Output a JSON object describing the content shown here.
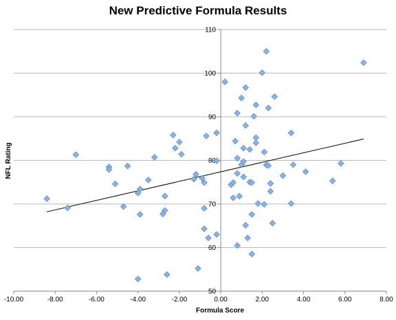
{
  "chart_data": {
    "type": "scatter",
    "title": "New Predictive Formula Results",
    "xlabel": "Formula Score",
    "ylabel": "NFL Rating",
    "xlim": [
      -10,
      8
    ],
    "ylim": [
      50,
      110
    ],
    "x_ticks": [
      "-10.00",
      "-8.00",
      "-6.00",
      "-4.00",
      "-2.00",
      "0.00",
      "2.00",
      "4.00",
      "6.00",
      "8.00"
    ],
    "y_ticks": [
      "50",
      "60",
      "70",
      "80",
      "90",
      "100",
      "110"
    ],
    "grid": "horizontal",
    "legend": "none",
    "marker_color": "#8db3e2",
    "marker_stroke": "#5b8cc7",
    "trendline": {
      "x": [
        -8.4,
        6.9
      ],
      "y": [
        68.2,
        84.9
      ]
    },
    "points": [
      {
        "x": -8.4,
        "y": 71.2
      },
      {
        "x": -7.4,
        "y": 69.1
      },
      {
        "x": -7.0,
        "y": 81.3
      },
      {
        "x": -5.4,
        "y": 78.5
      },
      {
        "x": -5.4,
        "y": 77.9
      },
      {
        "x": -5.1,
        "y": 74.6
      },
      {
        "x": -4.5,
        "y": 78.7
      },
      {
        "x": -4.7,
        "y": 69.4
      },
      {
        "x": -4.0,
        "y": 72.5
      },
      {
        "x": -3.9,
        "y": 73.4
      },
      {
        "x": -3.9,
        "y": 67.6
      },
      {
        "x": -3.5,
        "y": 75.5
      },
      {
        "x": -3.2,
        "y": 80.7
      },
      {
        "x": -4.0,
        "y": 52.8
      },
      {
        "x": -2.7,
        "y": 71.8
      },
      {
        "x": -2.7,
        "y": 68.5
      },
      {
        "x": -2.8,
        "y": 67.7
      },
      {
        "x": -2.6,
        "y": 53.8
      },
      {
        "x": -2.3,
        "y": 85.8
      },
      {
        "x": -2.2,
        "y": 82.8
      },
      {
        "x": -2.0,
        "y": 84.2
      },
      {
        "x": -1.9,
        "y": 81.4
      },
      {
        "x": -1.3,
        "y": 75.7
      },
      {
        "x": -1.2,
        "y": 76.8
      },
      {
        "x": -1.1,
        "y": 55.2
      },
      {
        "x": -0.9,
        "y": 75.9
      },
      {
        "x": -0.8,
        "y": 74.9
      },
      {
        "x": -0.8,
        "y": 69.0
      },
      {
        "x": -0.8,
        "y": 64.3
      },
      {
        "x": -0.6,
        "y": 62.2
      },
      {
        "x": -0.7,
        "y": 85.6
      },
      {
        "x": -0.2,
        "y": 86.3
      },
      {
        "x": -0.2,
        "y": 79.9
      },
      {
        "x": -0.2,
        "y": 63.0
      },
      {
        "x": 0.2,
        "y": 98.0
      },
      {
        "x": 0.5,
        "y": 74.4
      },
      {
        "x": 0.6,
        "y": 74.9
      },
      {
        "x": 0.6,
        "y": 71.4
      },
      {
        "x": 0.7,
        "y": 84.4
      },
      {
        "x": 0.8,
        "y": 90.8
      },
      {
        "x": 0.8,
        "y": 80.5
      },
      {
        "x": 0.8,
        "y": 77.0
      },
      {
        "x": 0.8,
        "y": 60.5
      },
      {
        "x": 0.9,
        "y": 71.8
      },
      {
        "x": 1.0,
        "y": 94.3
      },
      {
        "x": 1.0,
        "y": 79.0
      },
      {
        "x": 1.1,
        "y": 82.8
      },
      {
        "x": 1.1,
        "y": 79.7
      },
      {
        "x": 1.1,
        "y": 76.2
      },
      {
        "x": 1.2,
        "y": 96.7
      },
      {
        "x": 1.2,
        "y": 88.0
      },
      {
        "x": 1.2,
        "y": 65.1
      },
      {
        "x": 1.3,
        "y": 62.2
      },
      {
        "x": 1.4,
        "y": 82.5
      },
      {
        "x": 1.4,
        "y": 75.0
      },
      {
        "x": 1.5,
        "y": 74.9
      },
      {
        "x": 1.5,
        "y": 58.5
      },
      {
        "x": 1.5,
        "y": 67.6
      },
      {
        "x": 1.6,
        "y": 90.1
      },
      {
        "x": 1.7,
        "y": 92.7
      },
      {
        "x": 1.7,
        "y": 85.2
      },
      {
        "x": 1.7,
        "y": 84.0
      },
      {
        "x": 1.8,
        "y": 70.1
      },
      {
        "x": 2.0,
        "y": 100.1
      },
      {
        "x": 2.1,
        "y": 81.9
      },
      {
        "x": 2.1,
        "y": 69.9
      },
      {
        "x": 2.2,
        "y": 105.0
      },
      {
        "x": 2.2,
        "y": 79.0
      },
      {
        "x": 2.3,
        "y": 92.0
      },
      {
        "x": 2.3,
        "y": 78.8
      },
      {
        "x": 2.4,
        "y": 72.9
      },
      {
        "x": 2.4,
        "y": 74.7
      },
      {
        "x": 2.5,
        "y": 65.6
      },
      {
        "x": 2.6,
        "y": 94.6
      },
      {
        "x": 3.0,
        "y": 76.5
      },
      {
        "x": 3.4,
        "y": 86.3
      },
      {
        "x": 3.4,
        "y": 70.1
      },
      {
        "x": 3.5,
        "y": 79.0
      },
      {
        "x": 4.1,
        "y": 77.4
      },
      {
        "x": 5.4,
        "y": 75.3
      },
      {
        "x": 5.8,
        "y": 79.3
      },
      {
        "x": 6.9,
        "y": 102.4
      }
    ]
  }
}
